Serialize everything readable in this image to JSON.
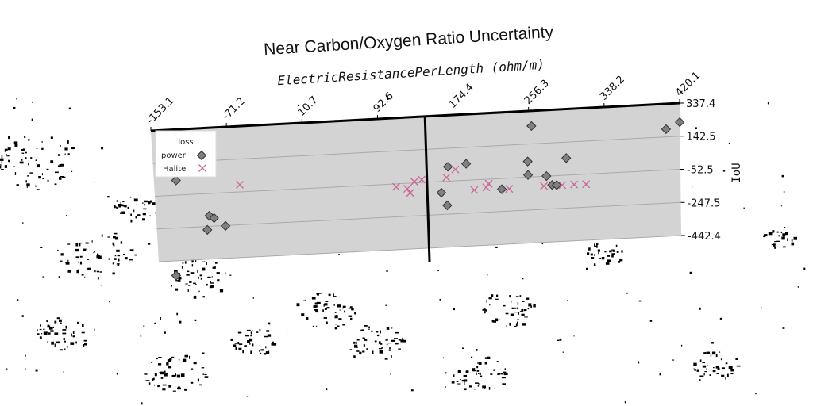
{
  "chart_data": {
    "type": "scatter",
    "title": "Near Carbon/Oxygen Ratio Uncertainty",
    "xlabel": "ElectricResistancePerLength (ohm/m)",
    "ylabel": "IoU",
    "x_ticks": [
      "-153.1",
      "-71.2",
      "10.7",
      "92.6",
      "174.4",
      "256.3",
      "338.2",
      "420.1"
    ],
    "y_ticks": [
      "337.4",
      "142.5",
      "-52.5",
      "-247.5",
      "-442.4"
    ],
    "xlim": [
      -153.1,
      420.1
    ],
    "ylim": [
      -442.4,
      337.4
    ],
    "vline_x": 144,
    "grid": "horizontal",
    "legend": {
      "title": "loss",
      "placement": "top-left"
    },
    "series": [
      {
        "name": "power",
        "marker": "diamond",
        "color": "#808080",
        "points": [
          [
            -129,
            35
          ],
          [
            -95,
            -185
          ],
          [
            -90,
            -200
          ],
          [
            -98,
            -268
          ],
          [
            -78,
            -250
          ],
          [
            -135,
            -530
          ],
          [
            167,
            33
          ],
          [
            187,
            45
          ],
          [
            159,
            -118
          ],
          [
            165,
            -195
          ],
          [
            259,
            248
          ],
          [
            254,
            40
          ],
          [
            254,
            -40
          ],
          [
            274,
            -52
          ],
          [
            296,
            48
          ],
          [
            225,
            -116
          ],
          [
            280,
            -106
          ],
          [
            405,
            188
          ],
          [
            420,
            225
          ],
          [
            285,
            -108
          ]
        ]
      },
      {
        "name": "Halite",
        "marker": "x",
        "color": "#cc6699",
        "points": [
          [
            -60,
            -10
          ],
          [
            110,
            -70
          ],
          [
            122,
            -85
          ],
          [
            125,
            -110
          ],
          [
            130,
            -45
          ],
          [
            138,
            -35
          ],
          [
            165,
            -30
          ],
          [
            175,
            15
          ],
          [
            195,
            -112
          ],
          [
            208,
            -100
          ],
          [
            211,
            -80
          ],
          [
            233,
            -116
          ],
          [
            271,
            -110
          ],
          [
            291,
            -110
          ],
          [
            304,
            -110
          ],
          [
            317,
            -112
          ]
        ]
      }
    ]
  }
}
